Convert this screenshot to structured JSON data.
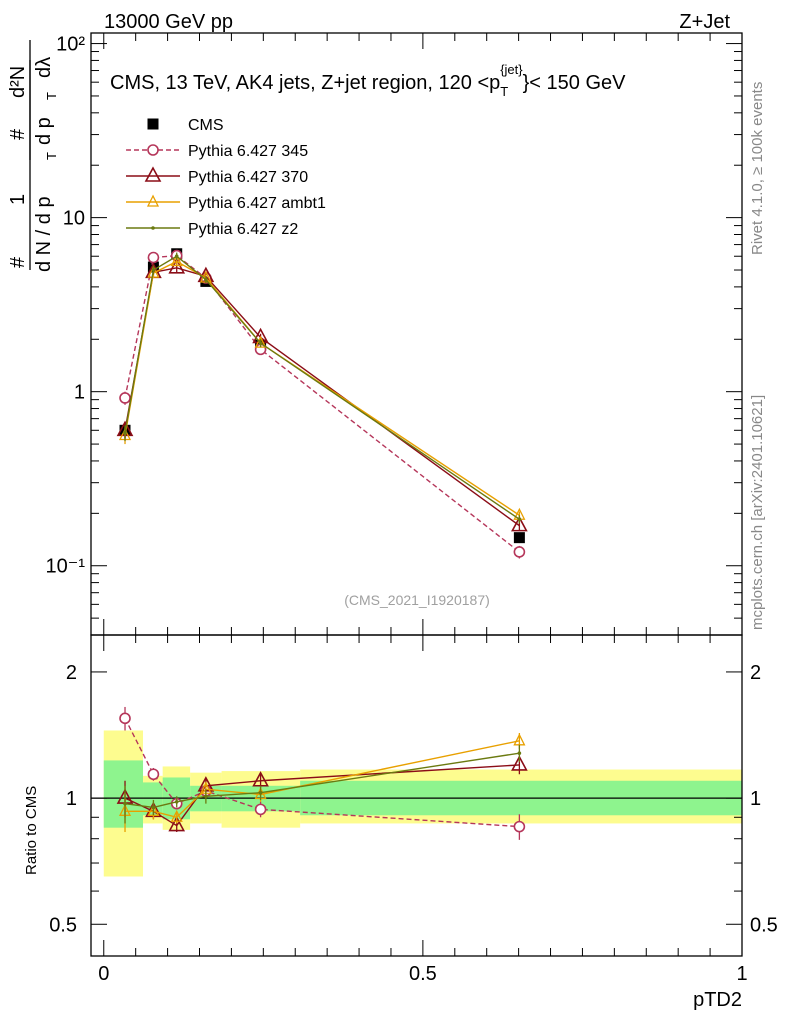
{
  "header": {
    "left": "13000 GeV pp",
    "right": "Z+Jet"
  },
  "side_labels": {
    "rivet": "Rivet 4.1.0, ≥ 100k events",
    "mcplots": "mcplots.cern.ch [arXiv:2401.10621]"
  },
  "chart_data": [
    {
      "type": "line",
      "panel": "main",
      "title": "CMS, 13 TeV, AK4 jets, Z+jet region, 120 <p_T^{jet}< 150 GeV",
      "title_parts": {
        "pre": "CMS, 13 TeV, AK4 jets, Z+jet region, 120 <p",
        "sub": "T",
        "sup": "{jet}",
        "post": "}< 150 GeV"
      },
      "ylabel": "1/dN/dp_T d^2N/dp_T dλ",
      "ylabel_parts": {
        "hash": "#",
        "one": "1",
        "dN": "d N / d p",
        "T": "T",
        "d2N": "d²N",
        "dpT": "d p",
        "dl": "dλ"
      },
      "yscale": "log",
      "ylim": [
        0.04,
        115
      ],
      "xlim": [
        -0.02,
        1.0
      ],
      "ytick_labels": {
        "1e-1": "10⁻¹",
        "1": "1",
        "10": "10",
        "100": "10²"
      },
      "watermark": "(CMS_2021_I1920187)",
      "x": [
        0.0333,
        0.0778,
        0.1143,
        0.16,
        0.2457,
        0.6512
      ],
      "series": [
        {
          "name": "CMS",
          "color": "#000000",
          "marker": "square",
          "dash": "none",
          "values": [
            0.6,
            5.2,
            6.2,
            4.3,
            1.85,
            0.145
          ],
          "errors": [
            0.06,
            0.3,
            0.3,
            0.2,
            0.1,
            0.01
          ]
        },
        {
          "name": "Pythia 6.427 345",
          "color": "#b5365a",
          "marker": "circle-open",
          "dash": "dashed",
          "values": [
            0.92,
            5.9,
            6.05,
            4.5,
            1.75,
            0.12
          ],
          "errors": [
            0.08,
            0.3,
            0.3,
            0.2,
            0.1,
            0.01
          ]
        },
        {
          "name": "Pythia 6.427 370",
          "color": "#8b0d17",
          "marker": "triangle-open",
          "dash": "none",
          "values": [
            0.6,
            4.85,
            5.15,
            4.6,
            2.05,
            0.17
          ],
          "errors": [
            0.06,
            0.3,
            0.3,
            0.2,
            0.1,
            0.01
          ]
        },
        {
          "name": "Pythia 6.427 ambt1",
          "color": "#e8a000",
          "marker": "triangle-open-small",
          "dash": "none",
          "values": [
            0.56,
            4.8,
            5.6,
            4.5,
            1.9,
            0.195
          ],
          "errors": [
            0.06,
            0.3,
            0.3,
            0.2,
            0.1,
            0.01
          ]
        },
        {
          "name": "Pythia 6.427 z2",
          "color": "#6b7a10",
          "marker": "dot",
          "dash": "none",
          "values": [
            0.58,
            5.0,
            6.0,
            4.4,
            1.9,
            0.185
          ],
          "errors": [
            0.06,
            0.3,
            0.3,
            0.2,
            0.1,
            0.01
          ]
        }
      ]
    },
    {
      "type": "line",
      "panel": "ratio",
      "ylabel": "Ratio to CMS",
      "xlabel": "pTD2",
      "yscale": "log",
      "ylim": [
        0.42,
        2.45
      ],
      "ytick_labels": {
        "0.5": "0.5",
        "1": "1",
        "2": "2"
      },
      "xtick_labels": {
        "0": "0",
        "0.5": "0.5",
        "1": "1"
      },
      "bin_edges": [
        0.0,
        0.0615,
        0.0923,
        0.1353,
        0.1846,
        0.3077,
        1.0
      ],
      "band_inner": [
        [
          0.85,
          1.23
        ],
        [
          0.91,
          1.09
        ],
        [
          0.89,
          1.12
        ],
        [
          0.93,
          1.07
        ],
        [
          0.93,
          1.07
        ],
        [
          0.91,
          1.1
        ]
      ],
      "band_outer": [
        [
          0.65,
          1.45
        ],
        [
          0.87,
          1.13
        ],
        [
          0.84,
          1.19
        ],
        [
          0.87,
          1.15
        ],
        [
          0.85,
          1.16
        ],
        [
          0.87,
          1.17
        ]
      ],
      "x": [
        0.0333,
        0.0778,
        0.1143,
        0.16,
        0.2457,
        0.6512
      ],
      "series": [
        {
          "name": "Pythia 6.427 345",
          "color": "#b5365a",
          "marker": "circle-open",
          "dash": "dashed",
          "values": [
            1.55,
            1.14,
            0.97,
            1.04,
            0.94,
            0.855
          ],
          "errors": [
            0.1,
            0.04,
            0.03,
            0.04,
            0.04,
            0.06
          ]
        },
        {
          "name": "Pythia 6.427 370",
          "color": "#8b0d17",
          "marker": "triangle-open",
          "dash": "none",
          "values": [
            1.0,
            0.93,
            0.86,
            1.07,
            1.1,
            1.2
          ],
          "errors": [
            0.1,
            0.04,
            0.03,
            0.04,
            0.04,
            0.06
          ]
        },
        {
          "name": "Pythia 6.427 ambt1",
          "color": "#e8a000",
          "marker": "triangle-open-small",
          "dash": "none",
          "values": [
            0.93,
            0.93,
            0.9,
            1.05,
            1.02,
            1.37
          ],
          "errors": [
            0.1,
            0.04,
            0.03,
            0.04,
            0.04,
            0.06
          ]
        },
        {
          "name": "Pythia 6.427 z2",
          "color": "#6b7a10",
          "marker": "dot",
          "dash": "none",
          "values": [
            0.97,
            0.95,
            0.98,
            1.01,
            1.03,
            1.28
          ],
          "errors": [
            0.1,
            0.04,
            0.03,
            0.04,
            0.04,
            0.06
          ]
        }
      ]
    }
  ]
}
